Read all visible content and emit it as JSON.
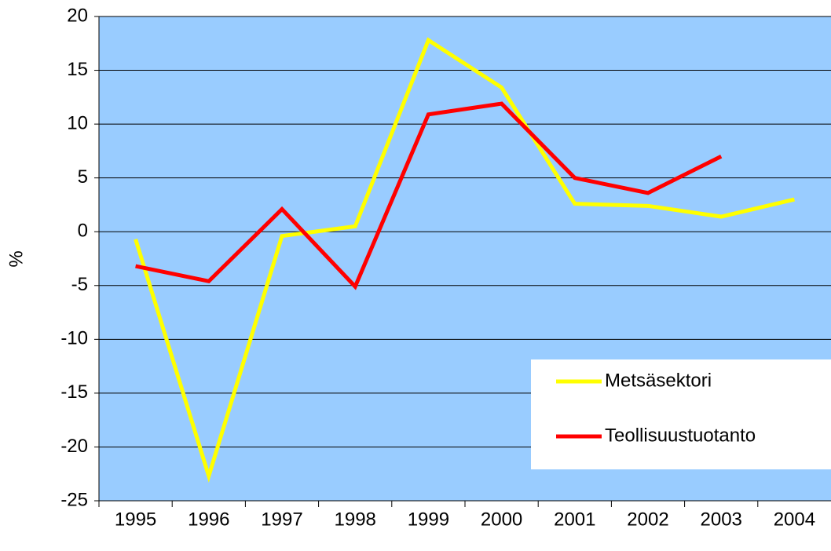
{
  "chart_data": {
    "type": "line",
    "y_label": "%",
    "categories": [
      "1995",
      "1996",
      "1997",
      "1998",
      "1999",
      "2000",
      "2001",
      "2002",
      "2003",
      "2004"
    ],
    "series": [
      {
        "name": "Metsäsektori",
        "color": "#ffff00",
        "values": [
          -0.7,
          -22.7,
          -0.4,
          0.5,
          17.8,
          13.4,
          2.6,
          2.4,
          1.4,
          3.0
        ]
      },
      {
        "name": "Teollisuustuotanto",
        "color": "#ff0000",
        "values": [
          -3.2,
          -4.6,
          2.1,
          -5.1,
          10.9,
          11.9,
          5.0,
          3.6,
          7.0,
          null
        ]
      }
    ],
    "ylim": [
      -25,
      20
    ],
    "yticks": [
      -25,
      -20,
      -15,
      -10,
      -5,
      0,
      5,
      10,
      15,
      20
    ],
    "grid": true,
    "legend": "lower right",
    "background": "#99ccff"
  }
}
